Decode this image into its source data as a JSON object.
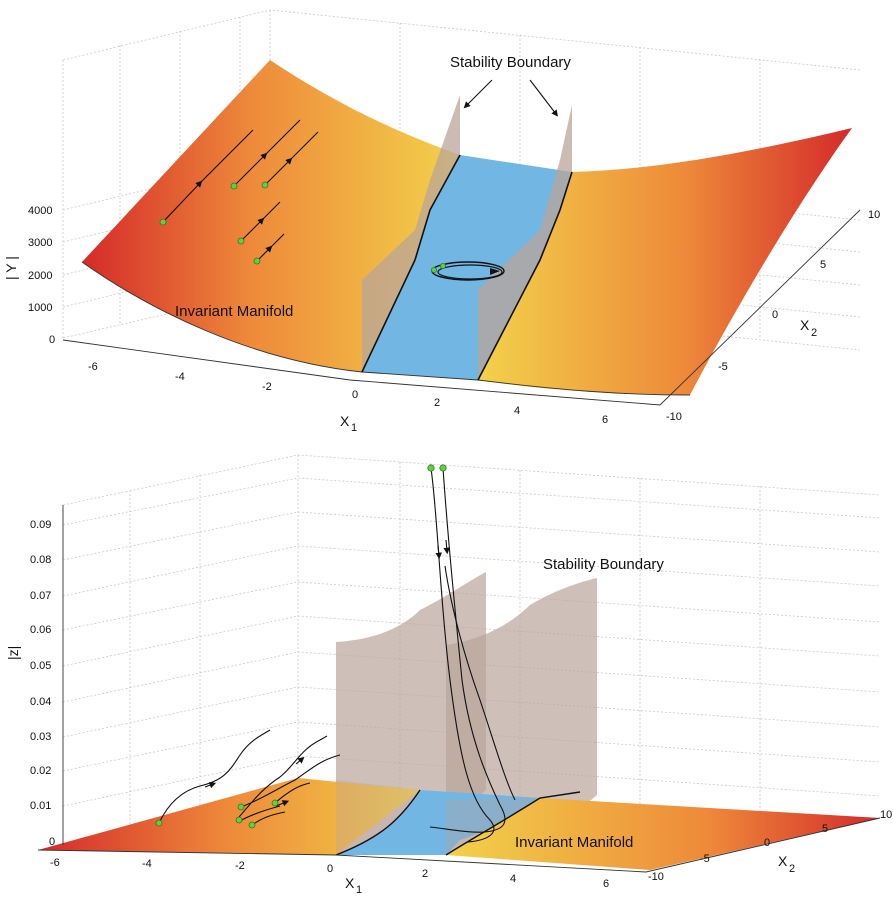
{
  "top": {
    "annotation": "Stability Boundary",
    "manifold_label": "Invariant Manifold",
    "z_label": "| Y |",
    "x1_label": "X",
    "x1_sub": "1",
    "x2_label": "X",
    "x2_sub": "2",
    "z_ticks": [
      "4000",
      "3000",
      "2000",
      "1000",
      "0"
    ],
    "x1_ticks": [
      "-6",
      "-4",
      "-2",
      "0",
      "2",
      "4",
      "6"
    ],
    "x2_ticks": [
      "10",
      "5",
      "0",
      "-5",
      "-10"
    ]
  },
  "bottom": {
    "annotation": "Stability Boundary",
    "manifold_label": "Invariant Manifold",
    "z_label": "|z|",
    "x1_label": "X",
    "x1_sub": "1",
    "x2_label": "X",
    "x2_sub": "2",
    "z_ticks": [
      "0.09",
      "0.08",
      "0.07",
      "0.06",
      "0.05",
      "0.04",
      "0.03",
      "0.02",
      "0.01",
      "0"
    ],
    "x1_ticks": [
      "-6",
      "-4",
      "-2",
      "0",
      "2",
      "4",
      "6"
    ],
    "x2_ticks": [
      "10",
      "5",
      "0",
      "-5",
      "-10"
    ]
  },
  "colors": {
    "surface_red": "#d42a2a",
    "surface_orange": "#ee8a3a",
    "surface_yellow": "#f2d24a",
    "stable_region": "#72b6e4",
    "boundary_wall": "#b9a49a",
    "trajectory": "#111111",
    "start_point": "#66cc44"
  }
}
